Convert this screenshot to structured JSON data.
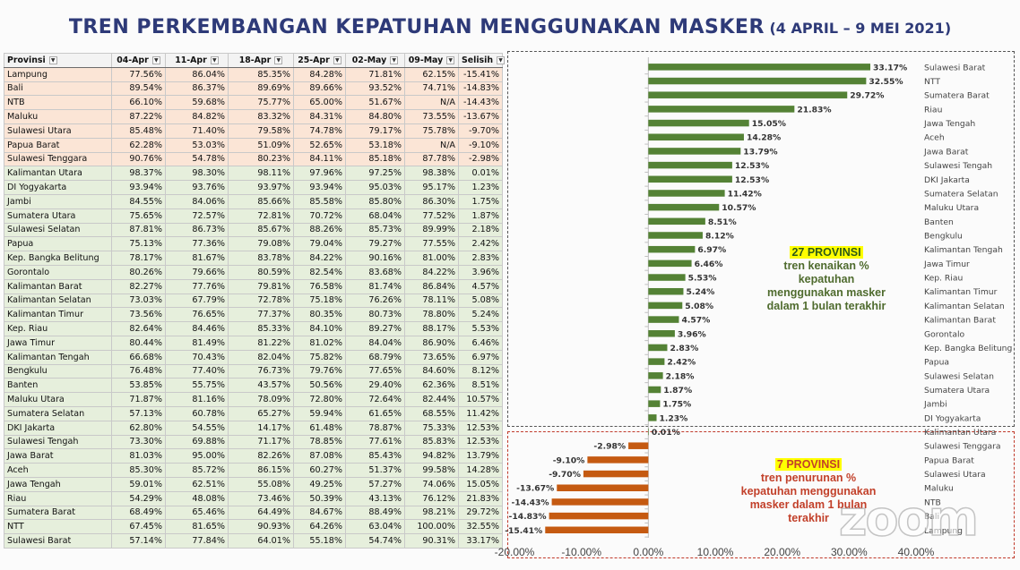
{
  "title": {
    "main": "TREN PERKEMBANGAN KEPATUHAN MENGGUNAKAN MASKER",
    "sub": "(4 APRIL – 9 MEI 2021)"
  },
  "colors": {
    "title": "#2e3a78",
    "positive_bar": "#548235",
    "negative_bar": "#c55a11",
    "negative_row": "#fbe5d6",
    "positive_row": "#e6efdc"
  },
  "table": {
    "headers": [
      "Provinsi",
      "04-Apr",
      "11-Apr",
      "18-Apr",
      "25-Apr",
      "02-May",
      "09-May",
      "Selisih"
    ],
    "rows": [
      [
        "Lampung",
        "77.56%",
        "86.04%",
        "85.35%",
        "84.28%",
        "71.81%",
        "62.15%",
        "-15.41%"
      ],
      [
        "Bali",
        "89.54%",
        "86.37%",
        "89.69%",
        "89.66%",
        "93.52%",
        "74.71%",
        "-14.83%"
      ],
      [
        "NTB",
        "66.10%",
        "59.68%",
        "75.77%",
        "65.00%",
        "51.67%",
        "N/A",
        "-14.43%"
      ],
      [
        "Maluku",
        "87.22%",
        "84.82%",
        "83.32%",
        "84.31%",
        "84.80%",
        "73.55%",
        "-13.67%"
      ],
      [
        "Sulawesi Utara",
        "85.48%",
        "71.40%",
        "79.58%",
        "74.78%",
        "79.17%",
        "75.78%",
        "-9.70%"
      ],
      [
        "Papua Barat",
        "62.28%",
        "53.03%",
        "51.09%",
        "52.65%",
        "53.18%",
        "N/A",
        "-9.10%"
      ],
      [
        "Sulawesi Tenggara",
        "90.76%",
        "54.78%",
        "80.23%",
        "84.11%",
        "85.18%",
        "87.78%",
        "-2.98%"
      ],
      [
        "Kalimantan Utara",
        "98.37%",
        "98.30%",
        "98.11%",
        "97.96%",
        "97.25%",
        "98.38%",
        "0.01%"
      ],
      [
        "DI Yogyakarta",
        "93.94%",
        "93.76%",
        "93.97%",
        "93.94%",
        "95.03%",
        "95.17%",
        "1.23%"
      ],
      [
        "Jambi",
        "84.55%",
        "84.06%",
        "85.66%",
        "85.58%",
        "85.80%",
        "86.30%",
        "1.75%"
      ],
      [
        "Sumatera Utara",
        "75.65%",
        "72.57%",
        "72.81%",
        "70.72%",
        "68.04%",
        "77.52%",
        "1.87%"
      ],
      [
        "Sulawesi Selatan",
        "87.81%",
        "86.73%",
        "85.67%",
        "88.26%",
        "85.73%",
        "89.99%",
        "2.18%"
      ],
      [
        "Papua",
        "75.13%",
        "77.36%",
        "79.08%",
        "79.04%",
        "79.27%",
        "77.55%",
        "2.42%"
      ],
      [
        "Kep. Bangka Belitung",
        "78.17%",
        "81.67%",
        "83.78%",
        "84.22%",
        "90.16%",
        "81.00%",
        "2.83%"
      ],
      [
        "Gorontalo",
        "80.26%",
        "79.66%",
        "80.59%",
        "82.54%",
        "83.68%",
        "84.22%",
        "3.96%"
      ],
      [
        "Kalimantan Barat",
        "82.27%",
        "77.76%",
        "79.81%",
        "76.58%",
        "81.74%",
        "86.84%",
        "4.57%"
      ],
      [
        "Kalimantan Selatan",
        "73.03%",
        "67.79%",
        "72.78%",
        "75.18%",
        "76.26%",
        "78.11%",
        "5.08%"
      ],
      [
        "Kalimantan Timur",
        "73.56%",
        "76.65%",
        "77.37%",
        "80.35%",
        "80.73%",
        "78.80%",
        "5.24%"
      ],
      [
        "Kep. Riau",
        "82.64%",
        "84.46%",
        "85.33%",
        "84.10%",
        "89.27%",
        "88.17%",
        "5.53%"
      ],
      [
        "Jawa Timur",
        "80.44%",
        "81.49%",
        "81.22%",
        "81.02%",
        "84.04%",
        "86.90%",
        "6.46%"
      ],
      [
        "Kalimantan Tengah",
        "66.68%",
        "70.43%",
        "82.04%",
        "75.82%",
        "68.79%",
        "73.65%",
        "6.97%"
      ],
      [
        "Bengkulu",
        "76.48%",
        "77.40%",
        "76.73%",
        "79.76%",
        "77.65%",
        "84.60%",
        "8.12%"
      ],
      [
        "Banten",
        "53.85%",
        "55.75%",
        "43.57%",
        "50.56%",
        "29.40%",
        "62.36%",
        "8.51%"
      ],
      [
        "Maluku Utara",
        "71.87%",
        "81.16%",
        "78.09%",
        "72.80%",
        "72.64%",
        "82.44%",
        "10.57%"
      ],
      [
        "Sumatera Selatan",
        "57.13%",
        "60.78%",
        "65.27%",
        "59.94%",
        "61.65%",
        "68.55%",
        "11.42%"
      ],
      [
        "DKI Jakarta",
        "62.80%",
        "54.55%",
        "14.17%",
        "61.48%",
        "78.87%",
        "75.33%",
        "12.53%"
      ],
      [
        "Sulawesi Tengah",
        "73.30%",
        "69.88%",
        "71.17%",
        "78.85%",
        "77.61%",
        "85.83%",
        "12.53%"
      ],
      [
        "Jawa Barat",
        "81.03%",
        "95.00%",
        "82.26%",
        "87.08%",
        "85.43%",
        "94.82%",
        "13.79%"
      ],
      [
        "Aceh",
        "85.30%",
        "85.72%",
        "86.15%",
        "60.27%",
        "51.37%",
        "99.58%",
        "14.28%"
      ],
      [
        "Jawa Tengah",
        "59.01%",
        "62.51%",
        "55.08%",
        "49.25%",
        "57.27%",
        "74.06%",
        "15.05%"
      ],
      [
        "Riau",
        "54.29%",
        "48.08%",
        "73.46%",
        "50.39%",
        "43.13%",
        "76.12%",
        "21.83%"
      ],
      [
        "Sumatera Barat",
        "68.49%",
        "65.46%",
        "64.49%",
        "84.67%",
        "88.49%",
        "98.21%",
        "29.72%"
      ],
      [
        "NTT",
        "67.45%",
        "81.65%",
        "90.93%",
        "64.26%",
        "63.04%",
        "100.00%",
        "32.55%"
      ],
      [
        "Sulawesi Barat",
        "57.14%",
        "77.84%",
        "64.01%",
        "55.18%",
        "54.74%",
        "90.31%",
        "33.17%"
      ]
    ]
  },
  "chart_data": {
    "type": "bar",
    "orientation": "horizontal",
    "categories": [
      "Sulawesi Barat",
      "NTT",
      "Sumatera Barat",
      "Riau",
      "Jawa Tengah",
      "Aceh",
      "Jawa Barat",
      "Sulawesi Tengah",
      "DKI Jakarta",
      "Sumatera Selatan",
      "Maluku Utara",
      "Banten",
      "Bengkulu",
      "Kalimantan Tengah",
      "Jawa Timur",
      "Kep. Riau",
      "Kalimantan Timur",
      "Kalimantan Selatan",
      "Kalimantan Barat",
      "Gorontalo",
      "Kep. Bangka Belitung",
      "Papua",
      "Sulawesi Selatan",
      "Sumatera Utara",
      "Jambi",
      "DI Yogyakarta",
      "Kalimantan Utara",
      "Sulawesi Tenggara",
      "Papua Barat",
      "Sulawesi Utara",
      "Maluku",
      "NTB",
      "Bali",
      "Lampung"
    ],
    "values": [
      33.17,
      32.55,
      29.72,
      21.83,
      15.05,
      14.28,
      13.79,
      12.53,
      12.53,
      11.42,
      10.57,
      8.51,
      8.12,
      6.97,
      6.46,
      5.53,
      5.24,
      5.08,
      4.57,
      3.96,
      2.83,
      2.42,
      2.18,
      1.87,
      1.75,
      1.23,
      0.01,
      -2.98,
      -9.1,
      -9.7,
      -13.67,
      -14.43,
      -14.83,
      -15.41
    ],
    "value_labels": [
      "33.17%",
      "32.55%",
      "29.72%",
      "21.83%",
      "15.05%",
      "14.28%",
      "13.79%",
      "12.53%",
      "12.53%",
      "11.42%",
      "10.57%",
      "8.51%",
      "8.12%",
      "6.97%",
      "6.46%",
      "5.53%",
      "5.24%",
      "5.08%",
      "4.57%",
      "3.96%",
      "2.83%",
      "2.42%",
      "2.18%",
      "1.87%",
      "1.75%",
      "1.23%",
      "0.01%",
      "-2.98%",
      "-9.10%",
      "-9.70%",
      "-13.67%",
      "-14.43%",
      "-14.83%",
      "-15.41%"
    ],
    "xlim": [
      -20,
      40
    ],
    "xticks": [
      "-20.00%",
      "-10.00%",
      "0.00%",
      "10.00%",
      "20.00%",
      "30.00%",
      "40.00%"
    ],
    "xtick_values": [
      -20,
      -10,
      0,
      10,
      20,
      30,
      40
    ],
    "grid": false,
    "legend": "none"
  },
  "annotations": {
    "positive": {
      "count": "27 PROVINSI",
      "text": [
        "tren kenaikan %",
        "kepatuhan",
        "menggunakan masker",
        "dalam 1 bulan terakhir"
      ]
    },
    "negative": {
      "count": "7 PROVINSI",
      "text": [
        "tren penurunan %",
        "kepatuhan menggunakan",
        "masker dalam 1 bulan",
        "terakhir"
      ]
    }
  },
  "watermark": "zoom"
}
